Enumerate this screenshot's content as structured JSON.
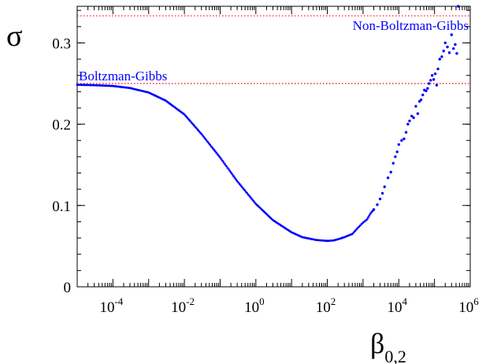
{
  "chart_data": {
    "type": "scatter",
    "title": "",
    "ylabel": "σ",
    "xlabel_main": "β",
    "xlabel_sub": "0,2",
    "x_scale": "log",
    "xlim": [
      1e-05,
      1000000
    ],
    "ylim": [
      0,
      0.345
    ],
    "x_ticks": [
      {
        "value": 0.0001,
        "base": "10",
        "exp": "-4"
      },
      {
        "value": 0.01,
        "base": "10",
        "exp": "-2"
      },
      {
        "value": 1,
        "base": "10",
        "exp": "0"
      },
      {
        "value": 100,
        "base": "10",
        "exp": "2"
      },
      {
        "value": 10000,
        "base": "10",
        "exp": "4"
      },
      {
        "value": 1000000,
        "base": "10",
        "exp": "6"
      }
    ],
    "y_ticks": [
      {
        "value": 0,
        "label": "0"
      },
      {
        "value": 0.1,
        "label": "0.1"
      },
      {
        "value": 0.2,
        "label": "0.2"
      },
      {
        "value": 0.3,
        "label": "0.3"
      }
    ],
    "reference_lines": [
      {
        "y": 0.25,
        "label": "Boltzman-Gibbs",
        "label_position": "left"
      },
      {
        "y": 0.3333,
        "label": "Non-Boltzman-Gibbs",
        "label_position": "right"
      }
    ],
    "series": [
      {
        "color": "#0000ff",
        "x": [
          1e-05,
          3e-05,
          0.0001,
          0.0003,
          0.001,
          0.003,
          0.01,
          0.03,
          0.1,
          0.3,
          1,
          3,
          10,
          20,
          50,
          100,
          150,
          200,
          300,
          500,
          700,
          1000,
          1300,
          1600,
          2000,
          2500,
          3000,
          3500,
          4000,
          5000,
          6000,
          7000,
          8000,
          9000,
          10000,
          12000,
          14000,
          16000,
          18000,
          20000,
          23000,
          26000,
          30000,
          34000,
          38000,
          42000,
          47000,
          52000,
          58000,
          64000,
          70000,
          78000,
          86000,
          95000,
          105000,
          115000,
          125000,
          140000,
          160000,
          180000,
          200000,
          230000,
          260000,
          300000,
          340000,
          380000,
          420000,
          460000
        ],
        "y": [
          0.2485,
          0.248,
          0.247,
          0.2445,
          0.239,
          0.229,
          0.212,
          0.188,
          0.159,
          0.13,
          0.102,
          0.082,
          0.067,
          0.061,
          0.0575,
          0.0565,
          0.057,
          0.0585,
          0.061,
          0.065,
          0.072,
          0.079,
          0.083,
          0.09,
          0.095,
          0.101,
          0.108,
          0.115,
          0.123,
          0.134,
          0.141,
          0.152,
          0.16,
          0.166,
          0.175,
          0.18,
          0.182,
          0.19,
          0.2,
          0.204,
          0.21,
          0.208,
          0.222,
          0.213,
          0.228,
          0.23,
          0.236,
          0.242,
          0.241,
          0.244,
          0.25,
          0.254,
          0.26,
          0.255,
          0.262,
          0.248,
          0.268,
          0.28,
          0.283,
          0.29,
          0.3,
          0.295,
          0.288,
          0.31,
          0.293,
          0.298,
          0.287,
          0.345
        ]
      }
    ],
    "grid": false
  }
}
